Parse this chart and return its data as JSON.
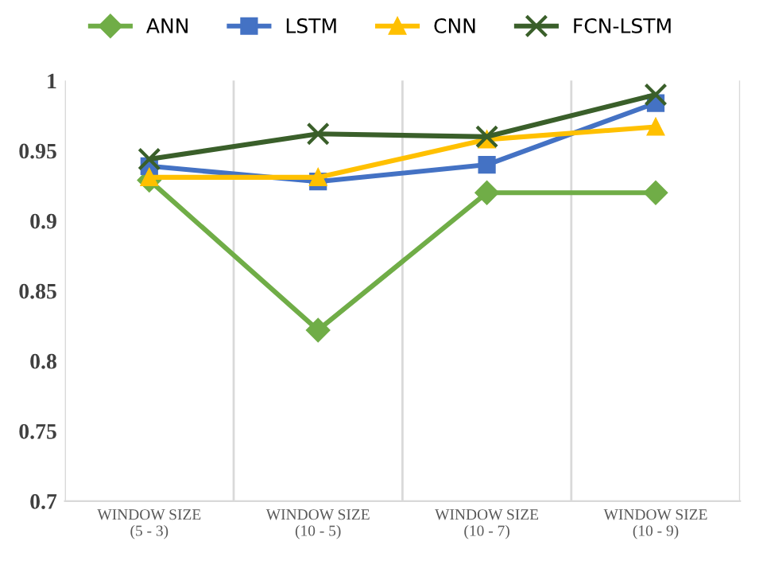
{
  "chart_data": {
    "type": "line",
    "categories": [
      "WINDOW SIZE\n(5 - 3)",
      "WINDOW SIZE\n(10 - 5)",
      "WINDOW SIZE\n(10 - 7)",
      "WINDOW SIZE\n(10 - 9)"
    ],
    "series": [
      {
        "name": "ANN",
        "color": "#70ad47",
        "marker": "diamond",
        "values": [
          0.929,
          0.822,
          0.92,
          0.92
        ]
      },
      {
        "name": "LSTM",
        "color": "#4472c4",
        "marker": "square",
        "values": [
          0.939,
          0.928,
          0.94,
          0.984
        ]
      },
      {
        "name": "CNN",
        "color": "#ffc000",
        "marker": "triangle",
        "values": [
          0.931,
          0.931,
          0.958,
          0.967
        ]
      },
      {
        "name": "FCN-LSTM",
        "color": "#3a5f2a",
        "marker": "cross",
        "values": [
          0.944,
          0.962,
          0.96,
          0.99
        ]
      }
    ],
    "ylim": [
      0.7,
      1
    ],
    "yticks": [
      0.7,
      0.75,
      0.8,
      0.85,
      0.9,
      0.95,
      1
    ],
    "grid": "x",
    "legend": "top",
    "line_style": "solid"
  }
}
